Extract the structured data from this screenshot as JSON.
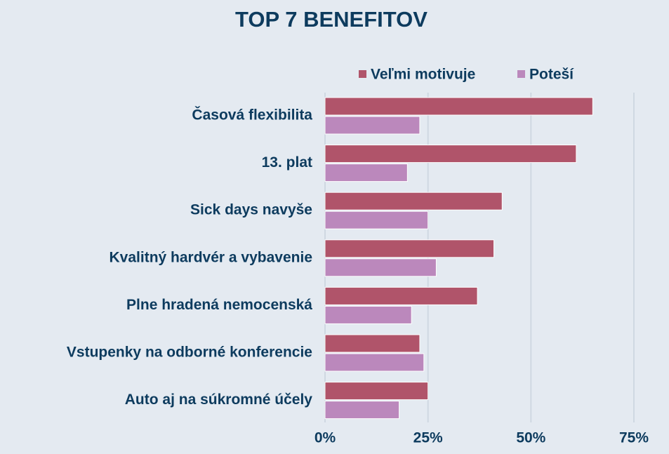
{
  "chart_data": {
    "type": "hbar",
    "title": "TOP 7 BENEFITOV",
    "categories": [
      "Časová flexibilita",
      "13. plat",
      "Sick days navyše",
      "Kvalitný hardvér a vybavenie",
      "Plne hradená nemocenská",
      "Vstupenky na odborné konferencie",
      "Auto aj na súkromné účely"
    ],
    "series": [
      {
        "name": "Veľmi motivuje",
        "color": "#b0546a",
        "values": [
          65,
          61,
          43,
          41,
          37,
          23,
          25
        ]
      },
      {
        "name": "Poteší",
        "color": "#bb88bc",
        "values": [
          23,
          20,
          25,
          27,
          21,
          24,
          18
        ]
      }
    ],
    "xlim": [
      0,
      75
    ],
    "xticks": [
      {
        "value": 0,
        "label": "0%"
      },
      {
        "value": 25,
        "label": "25%"
      },
      {
        "value": 50,
        "label": "50%"
      },
      {
        "value": 75,
        "label": "75%"
      }
    ],
    "grid": true,
    "legend": "top-right"
  }
}
